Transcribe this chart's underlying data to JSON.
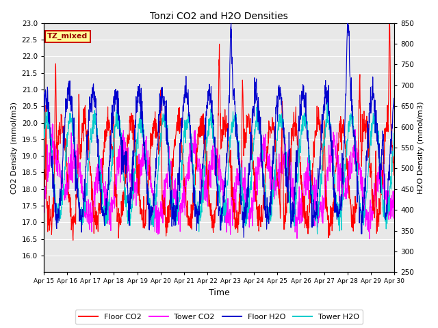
{
  "title": "Tonzi CO2 and H2O Densities",
  "xlabel": "Time",
  "ylabel_left": "CO2 Density (mmol/m3)",
  "ylabel_right": "H2O Density (mmol/m3)",
  "ylim_left": [
    15.5,
    23.0
  ],
  "ylim_right": [
    250,
    850
  ],
  "yticks_left": [
    16.0,
    16.5,
    17.0,
    17.5,
    18.0,
    18.5,
    19.0,
    19.5,
    20.0,
    20.5,
    21.0,
    21.5,
    22.0,
    22.5,
    23.0
  ],
  "yticks_right": [
    250,
    300,
    350,
    400,
    450,
    500,
    550,
    600,
    650,
    700,
    750,
    800,
    850
  ],
  "xtick_labels": [
    "Apr 15",
    "Apr 16",
    "Apr 17",
    "Apr 18",
    "Apr 19",
    "Apr 20",
    "Apr 21",
    "Apr 22",
    "Apr 23",
    "Apr 24",
    "Apr 25",
    "Apr 26",
    "Apr 27",
    "Apr 28",
    "Apr 29",
    "Apr 30"
  ],
  "colors": {
    "floor_co2": "#FF0000",
    "tower_co2": "#FF00FF",
    "floor_h2o": "#0000CC",
    "tower_h2o": "#00CCCC"
  },
  "legend_labels": [
    "Floor CO2",
    "Tower CO2",
    "Floor H2O",
    "Tower H2O"
  ],
  "annotation_text": "TZ_mixed",
  "annotation_color": "#990000",
  "annotation_bg": "#FFFF99",
  "annotation_edge": "#CC0000",
  "n_points": 1440,
  "background_color": "#FFFFFF",
  "plot_bg_color": "#E8E8E8",
  "grid_color": "#FFFFFF",
  "figsize": [
    6.4,
    4.8
  ],
  "dpi": 100
}
